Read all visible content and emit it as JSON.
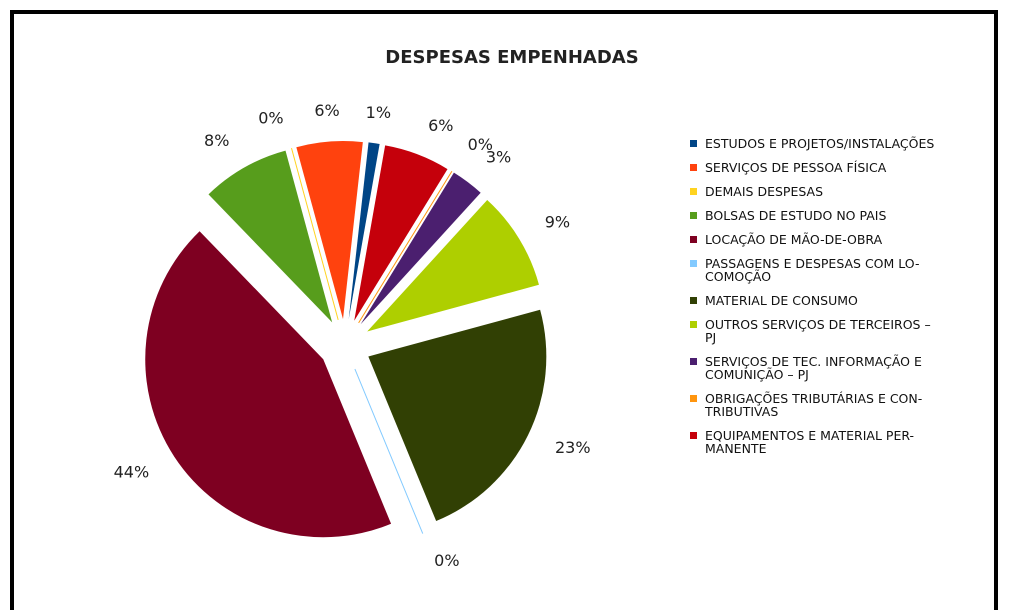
{
  "chart_data": {
    "type": "pie",
    "title": "DESPESAS EMPENHADAS",
    "categories": [
      "ESTUDOS E PROJETOS/INSTALAÇÕES",
      "SERVIÇOS DE PESSOA FÍSICA",
      "DEMAIS DESPESAS",
      "BOLSAS DE ESTUDO NO PAIS",
      "LOCAÇÃO DE MÃO-DE-OBRA",
      "PASSAGENS E DESPESAS COM LO-\nCOMOÇÃO",
      "MATERIAL DE CONSUMO",
      "OUTROS SERVIÇOS DE TERCEIROS –\nPJ",
      "SERVIÇOS DE TEC. INFORMAÇÃO E\nCOMUNIÇÃO – PJ",
      "OBRIGAÇÕES TRIBUTÁRIAS E CON-\nTRIBUTIVAS",
      "EQUIPAMENTOS E MATERIAL PER-\nMANENTE"
    ],
    "values": [
      1,
      6,
      0,
      8,
      44,
      0,
      23,
      9,
      3,
      0,
      6
    ],
    "value_labels": [
      "1%",
      "6%",
      "0%",
      "8%",
      "44%",
      "0%",
      "23%",
      "9%",
      "3%",
      "0%",
      "6%"
    ],
    "colors": [
      "#004586",
      "#ff420e",
      "#ffd320",
      "#579d1c",
      "#7e0021",
      "#83caff",
      "#314004",
      "#aecf00",
      "#4b1f6f",
      "#ff950e",
      "#c5000b"
    ],
    "legend": "right"
  }
}
